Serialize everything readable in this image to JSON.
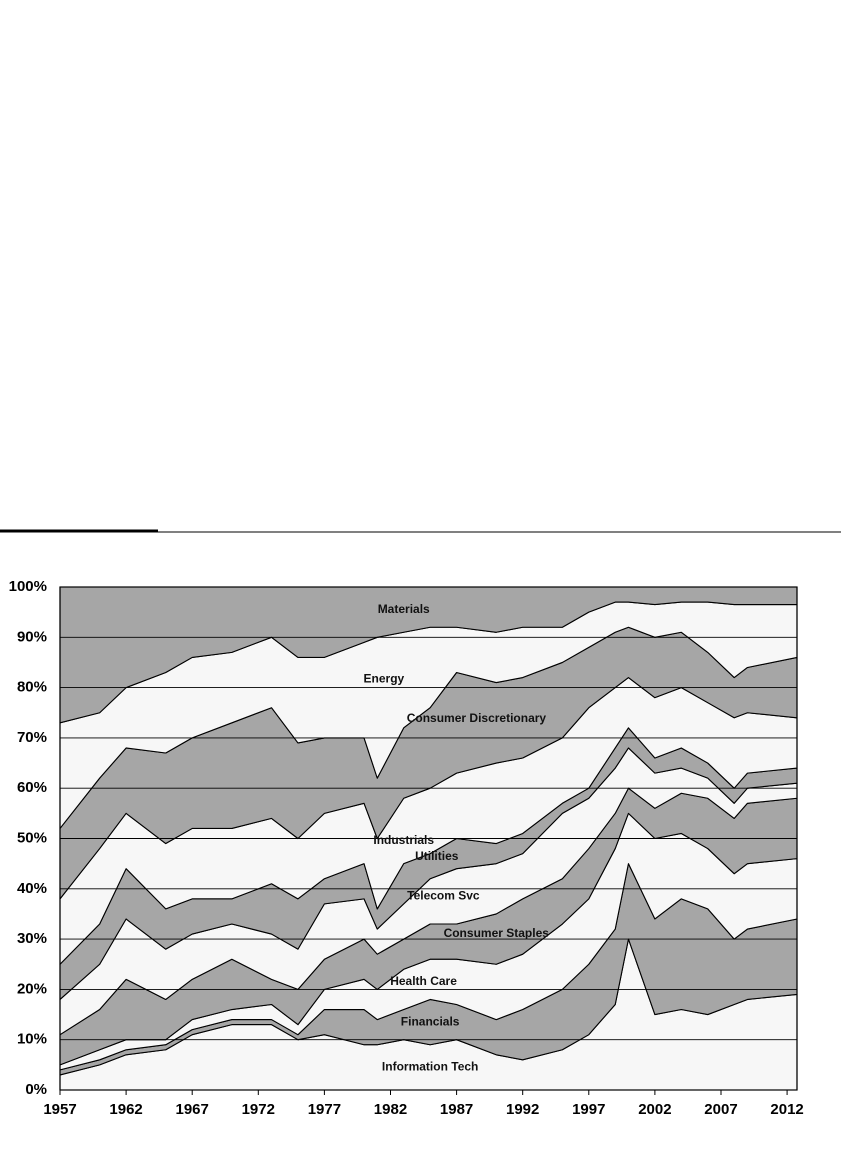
{
  "chart_data": {
    "type": "stacked_area",
    "x": [
      1957,
      1960,
      1962,
      1965,
      1967,
      1970,
      1973,
      1975,
      1977,
      1980,
      1981,
      1983,
      1985,
      1987,
      1990,
      1992,
      1995,
      1997,
      1999,
      2000,
      2002,
      2004,
      2006,
      2008,
      2009,
      2012.75
    ],
    "xlim": [
      1957,
      2012.75
    ],
    "xticks": [
      1957,
      1962,
      1967,
      1972,
      1977,
      1982,
      1987,
      1992,
      1997,
      2002,
      2007,
      2012
    ],
    "ylim": [
      0,
      100
    ],
    "yticks": [
      {
        "value": 0,
        "label": "0%"
      },
      {
        "value": 10,
        "label": "10%"
      },
      {
        "value": 20,
        "label": "20%"
      },
      {
        "value": 30,
        "label": "30%"
      },
      {
        "value": 40,
        "label": "40%"
      },
      {
        "value": 50,
        "label": "50%"
      },
      {
        "value": 60,
        "label": "60%"
      },
      {
        "value": 70,
        "label": "70%"
      },
      {
        "value": 80,
        "label": "80%"
      },
      {
        "value": 90,
        "label": "90%"
      },
      {
        "value": 100,
        "label": "100%"
      }
    ],
    "grid": true,
    "series": [
      {
        "name": "Information Tech",
        "color": "#f7f7f7",
        "values": [
          3,
          5,
          7,
          8,
          11,
          13,
          13,
          10,
          11,
          9,
          9,
          10,
          9,
          10,
          7,
          6,
          8,
          11,
          17,
          30,
          15,
          16,
          15,
          17,
          18,
          19
        ]
      },
      {
        "name": "Financials",
        "color": "#a6a6a6",
        "values": [
          1,
          1,
          1,
          1,
          1,
          1,
          1,
          1,
          5,
          7,
          5,
          6,
          9,
          7,
          7,
          10,
          12,
          14,
          15,
          15,
          19,
          22,
          21,
          13,
          14,
          15
        ]
      },
      {
        "name": "Health Care",
        "color": "#f7f7f7",
        "values": [
          1,
          2,
          2,
          1,
          2,
          2,
          3,
          2,
          4,
          6,
          6,
          8,
          8,
          9,
          11,
          11,
          13,
          13,
          16,
          10,
          16,
          13,
          12,
          13,
          13,
          12
        ]
      },
      {
        "name": "Consumer Staples",
        "color": "#a6a6a6",
        "values": [
          6,
          8,
          12,
          8,
          8,
          10,
          5,
          7,
          6,
          8,
          7,
          6,
          7,
          7,
          10,
          11,
          9,
          10,
          7,
          5,
          6,
          8,
          10,
          11,
          12,
          12
        ]
      },
      {
        "name": "Telecom Svc",
        "color": "#f7f7f7",
        "values": [
          7,
          9,
          12,
          10,
          9,
          7,
          9,
          8,
          11,
          8,
          5,
          7,
          9,
          11,
          10,
          9,
          13,
          10,
          9,
          8,
          7,
          5,
          4,
          3,
          3,
          3
        ]
      },
      {
        "name": "Utilities",
        "color": "#a6a6a6",
        "values": [
          7,
          8,
          10,
          8,
          7,
          5,
          10,
          10,
          5,
          7,
          4,
          8,
          5,
          6,
          4,
          4,
          2,
          2,
          4,
          4,
          3,
          4,
          3,
          3,
          3,
          3
        ]
      },
      {
        "name": "Industrials",
        "color": "#f7f7f7",
        "values": [
          13,
          15,
          11,
          13,
          14,
          14,
          13,
          12,
          13,
          12,
          14,
          13,
          13,
          13,
          16,
          15,
          13,
          16,
          12,
          10,
          12,
          12,
          12,
          14,
          12,
          10
        ]
      },
      {
        "name": "Consumer Discretionary",
        "color": "#a6a6a6",
        "values": [
          14,
          14,
          13,
          18,
          18,
          21,
          22,
          19,
          15,
          13,
          12,
          14,
          16,
          20,
          16,
          16,
          15,
          12,
          11,
          10,
          12,
          11,
          10,
          8,
          9,
          12
        ]
      },
      {
        "name": "Energy",
        "color": "#f7f7f7",
        "values": [
          21,
          13,
          12,
          16,
          16,
          14,
          14,
          17,
          16,
          19,
          28,
          19,
          16,
          9,
          10,
          10,
          7,
          7,
          6,
          5,
          6.5,
          6,
          10,
          14.5,
          12.5,
          10.5
        ]
      },
      {
        "name": "Materials",
        "color": "#a6a6a6",
        "values": [
          27,
          25,
          20,
          17,
          14,
          13,
          10,
          14,
          14,
          11,
          10,
          9,
          8,
          8,
          9,
          8,
          8,
          5,
          3,
          3,
          3.5,
          3,
          3,
          3.5,
          3.5,
          3.5
        ]
      }
    ]
  }
}
